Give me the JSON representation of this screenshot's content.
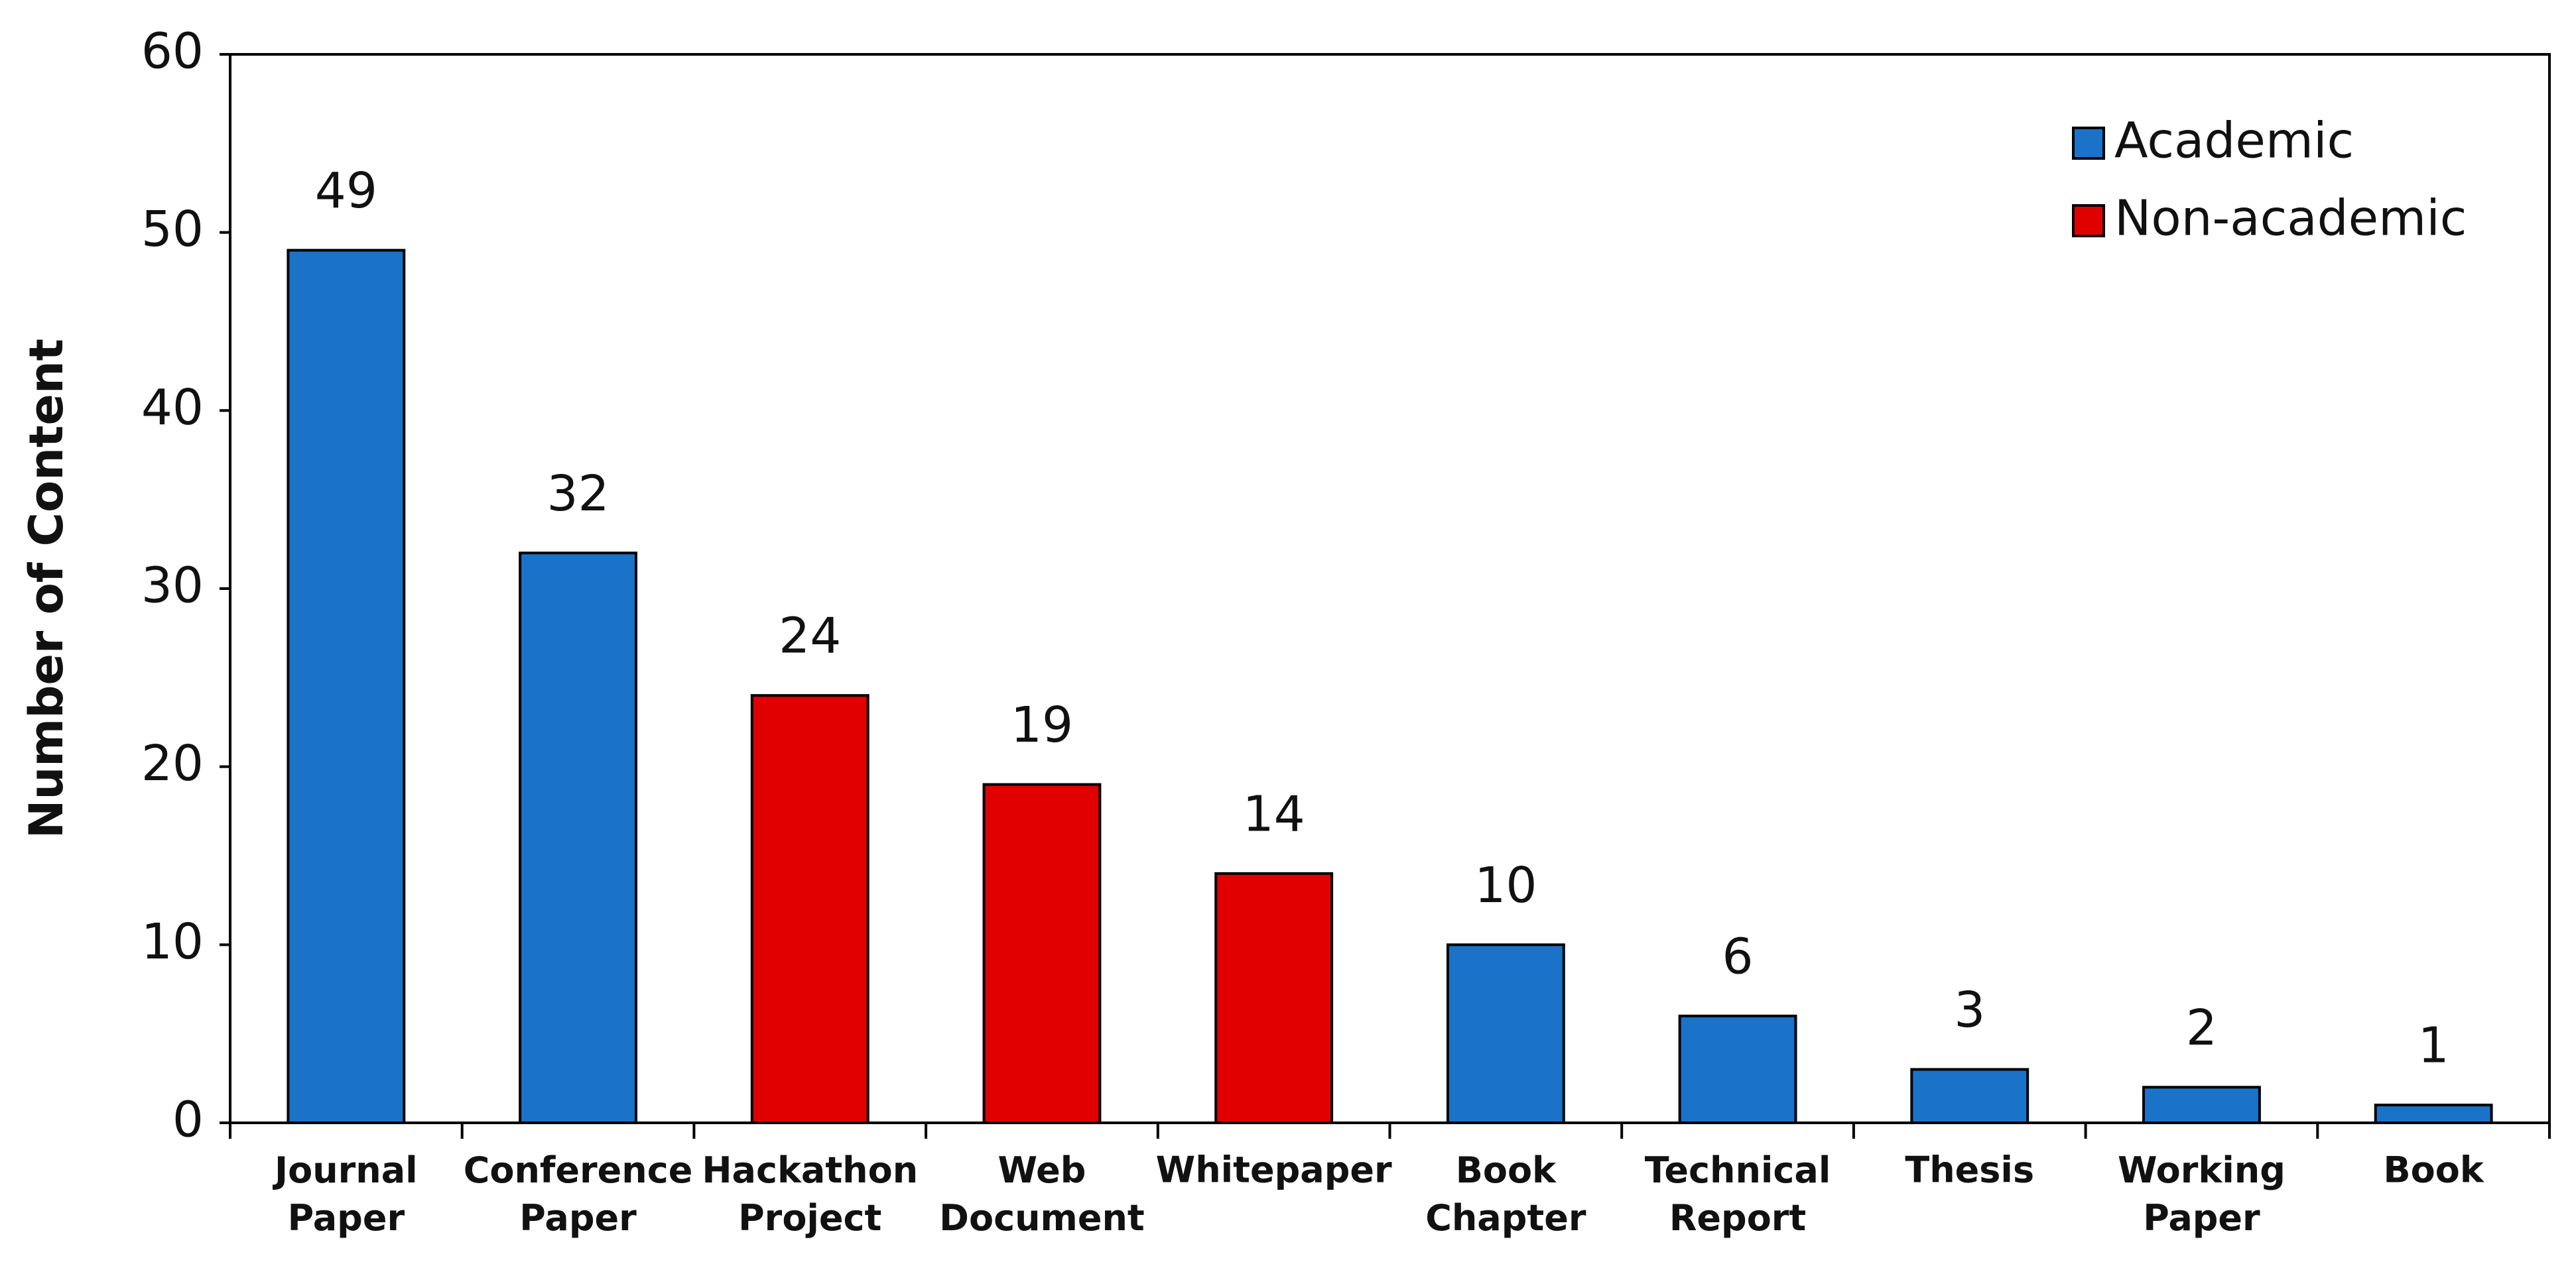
{
  "chart_data": {
    "type": "bar",
    "ylabel": "Number of Content",
    "categories": [
      "Journal Paper",
      "Conference Paper",
      "Hackathon Project",
      "Web Document",
      "Whitepaper",
      "Book Chapter",
      "Technical Report",
      "Thesis",
      "Working Paper",
      "Book"
    ],
    "series": [
      {
        "name": "Academic",
        "color": "#1a73c8",
        "values": [
          49,
          32,
          null,
          null,
          null,
          10,
          6,
          3,
          2,
          1
        ]
      },
      {
        "name": "Non-academic",
        "color": "#e00000",
        "values": [
          null,
          null,
          24,
          19,
          14,
          null,
          null,
          null,
          null,
          null
        ]
      }
    ],
    "ylim": [
      0,
      60
    ],
    "yticks": [
      0,
      10,
      20,
      30,
      40,
      50,
      60
    ],
    "grid": false,
    "legend": "upper right"
  }
}
